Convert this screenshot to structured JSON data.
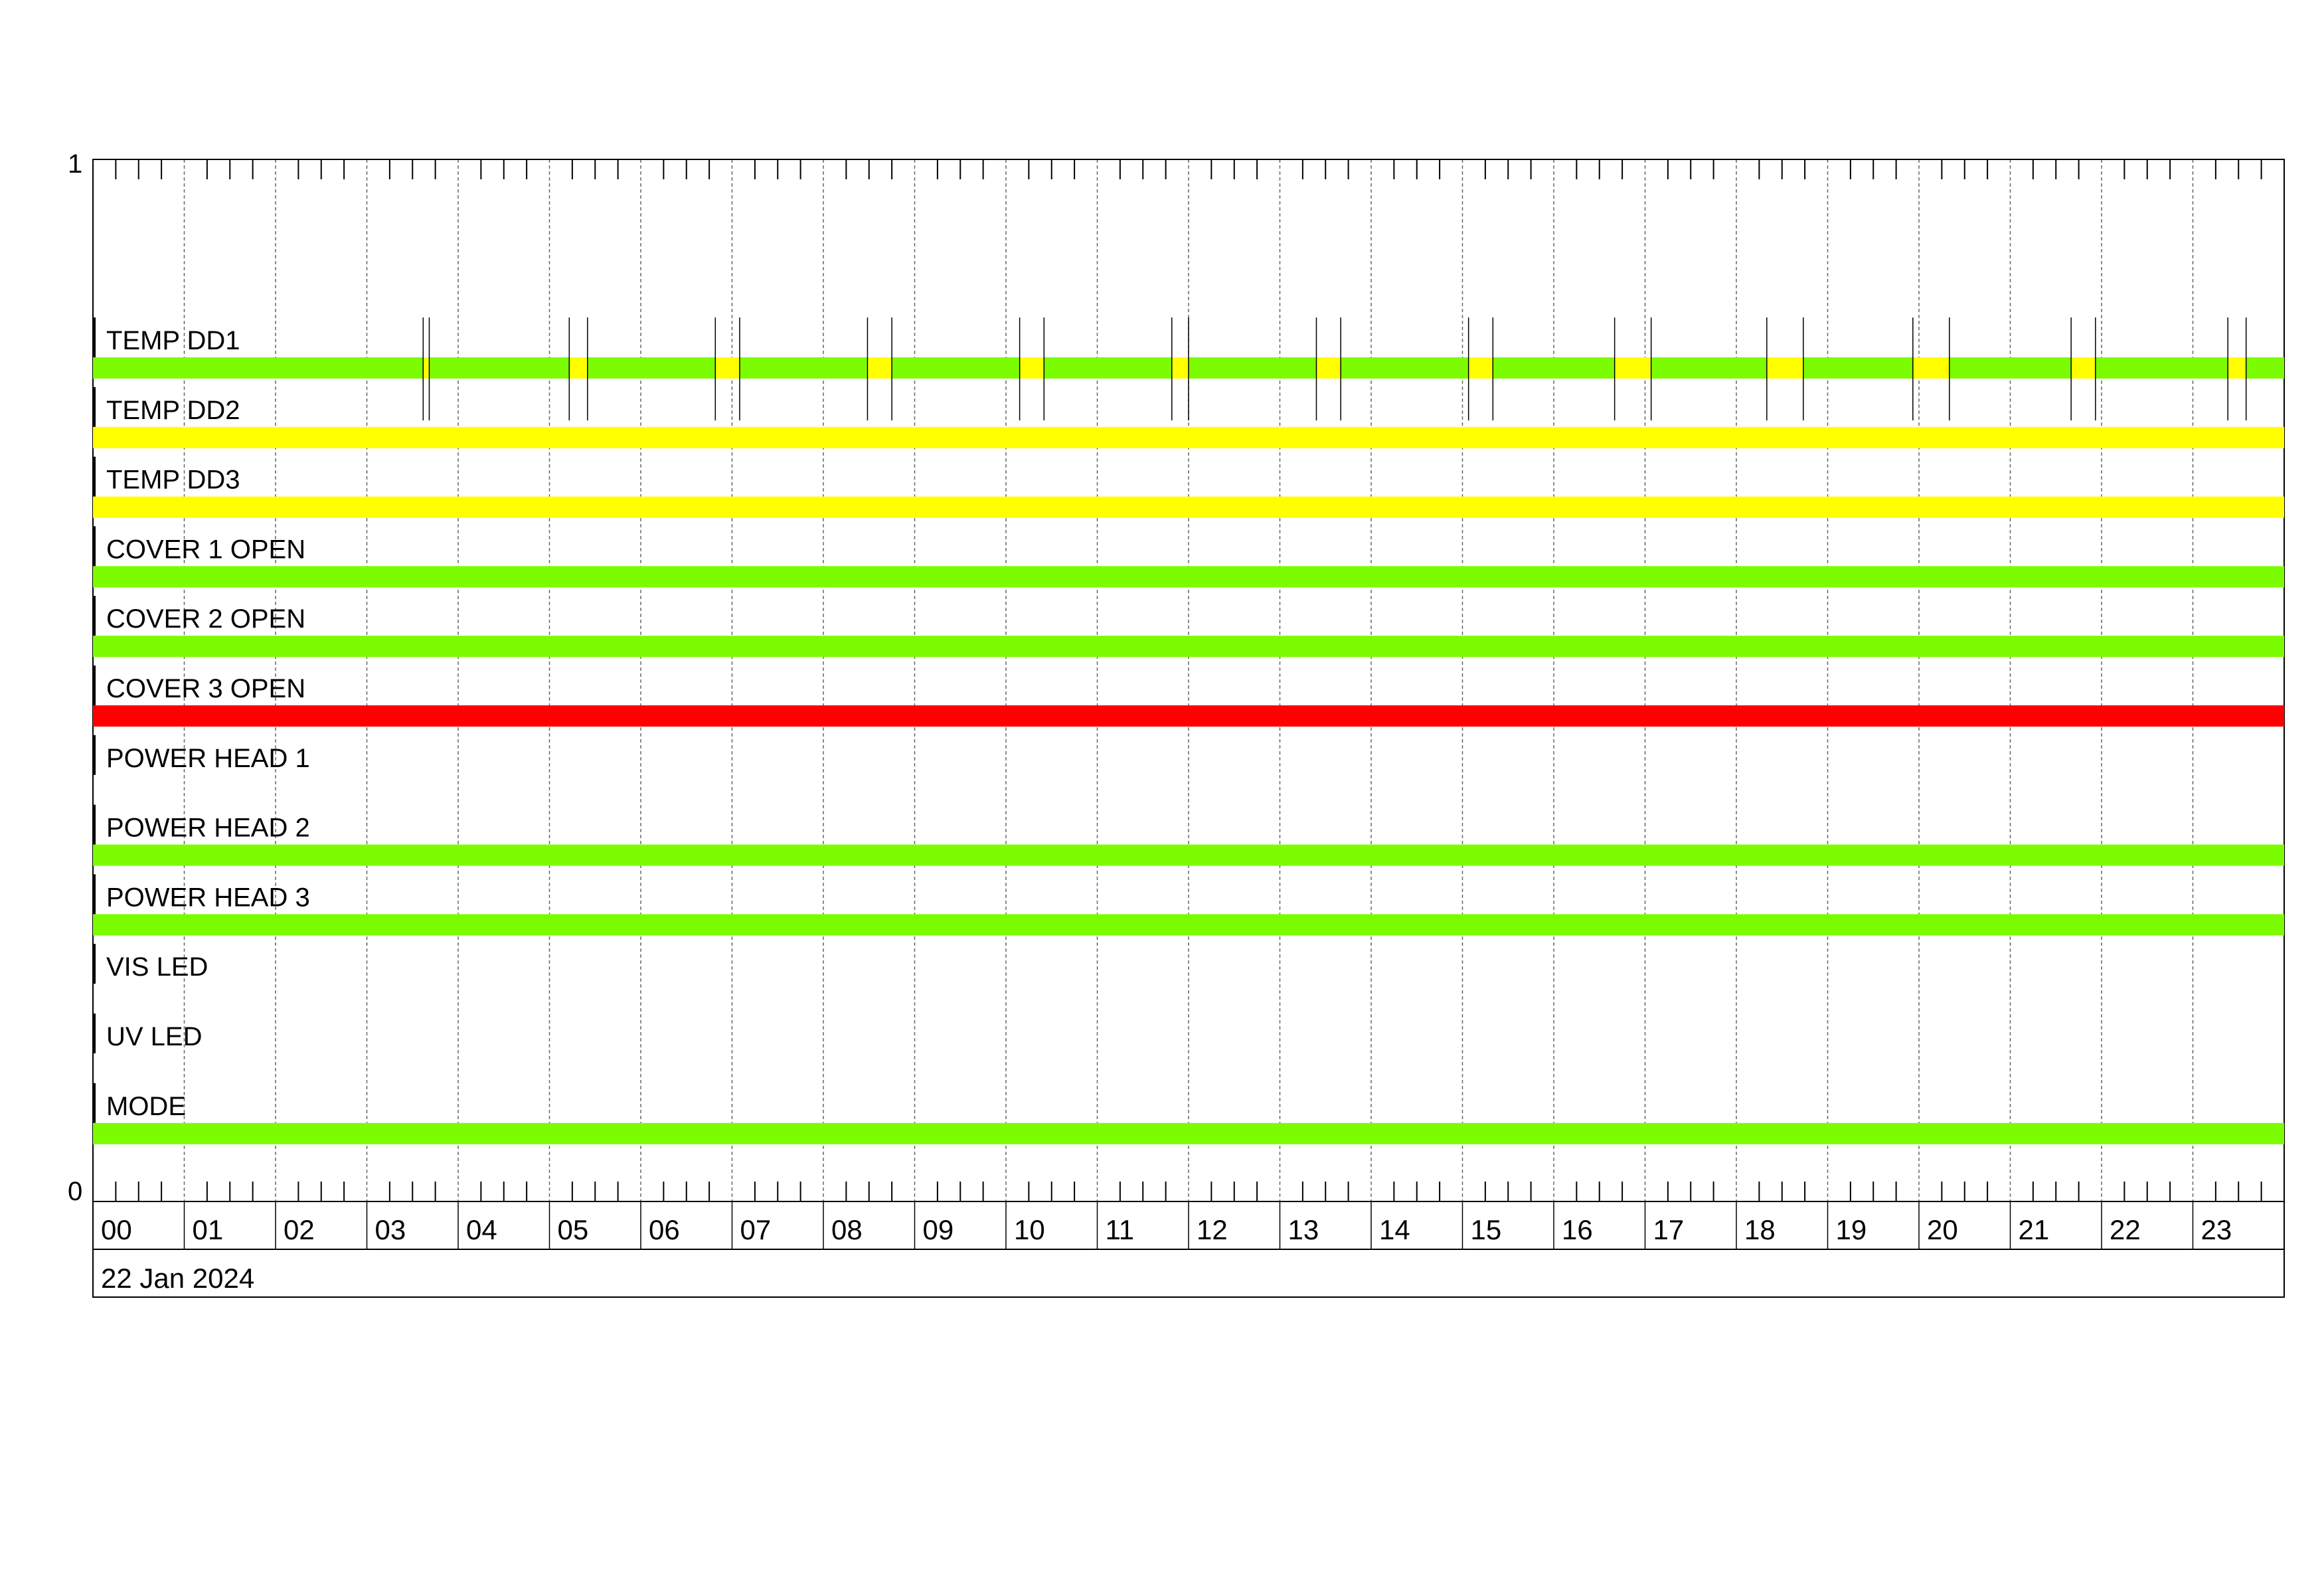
{
  "chart_data": {
    "type": "timeline",
    "title": "",
    "date_label": "22 Jan 2024",
    "x_range_hours": [
      0,
      24
    ],
    "x_tick_labels": [
      "00",
      "01",
      "02",
      "03",
      "04",
      "05",
      "06",
      "07",
      "08",
      "09",
      "10",
      "11",
      "12",
      "13",
      "14",
      "15",
      "16",
      "17",
      "18",
      "19",
      "20",
      "21",
      "22",
      "23"
    ],
    "y_tick_labels": [
      "1",
      "0"
    ],
    "grid": true,
    "colors": {
      "ok": "#7CFC00",
      "warn": "#FFFF00",
      "alarm": "#FF0000"
    },
    "rows": [
      {
        "label": "TEMP DD1",
        "state": "ok",
        "segments": [
          {
            "start": "03:37",
            "end": "03:41",
            "state": "warn"
          },
          {
            "start": "05:13",
            "end": "05:25",
            "state": "warn"
          },
          {
            "start": "06:49",
            "end": "07:05",
            "state": "warn"
          },
          {
            "start": "08:29",
            "end": "08:45",
            "state": "warn"
          },
          {
            "start": "10:09",
            "end": "10:25",
            "state": "warn"
          },
          {
            "start": "11:49",
            "end": "12:00",
            "state": "warn"
          },
          {
            "start": "13:24",
            "end": "13:40",
            "state": "warn"
          },
          {
            "start": "15:04",
            "end": "15:20",
            "state": "warn"
          },
          {
            "start": "16:40",
            "end": "17:04",
            "state": "warn"
          },
          {
            "start": "18:20",
            "end": "18:44",
            "state": "warn"
          },
          {
            "start": "19:56",
            "end": "20:20",
            "state": "warn"
          },
          {
            "start": "21:40",
            "end": "21:56",
            "state": "warn"
          },
          {
            "start": "23:23",
            "end": "23:35",
            "state": "warn"
          }
        ]
      },
      {
        "label": "TEMP DD2",
        "state": "warn",
        "segments": []
      },
      {
        "label": "TEMP DD3",
        "state": "warn",
        "segments": []
      },
      {
        "label": "COVER 1 OPEN",
        "state": "ok",
        "segments": []
      },
      {
        "label": "COVER 2 OPEN",
        "state": "ok",
        "segments": []
      },
      {
        "label": "COVER 3 OPEN",
        "state": "alarm",
        "segments": []
      },
      {
        "label": "POWER HEAD 1",
        "state": null,
        "segments": []
      },
      {
        "label": "POWER HEAD 2",
        "state": "ok",
        "segments": []
      },
      {
        "label": "POWER HEAD 3",
        "state": "ok",
        "segments": []
      },
      {
        "label": "VIS LED",
        "state": null,
        "segments": []
      },
      {
        "label": "UV LED",
        "state": null,
        "segments": []
      },
      {
        "label": "MODE",
        "state": "ok",
        "segments": []
      }
    ]
  }
}
